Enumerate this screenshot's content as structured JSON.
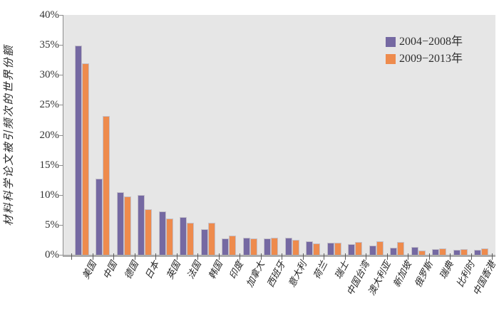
{
  "chart_data": {
    "type": "bar",
    "title": "",
    "xlabel": "",
    "ylabel": "材料科学论文被引频次的世界份额",
    "ylim": [
      0,
      40
    ],
    "y_tick_step": 5,
    "y_tick_labels": [
      "0%",
      "5%",
      "10%",
      "15%",
      "20%",
      "25%",
      "30%",
      "35%",
      "40%"
    ],
    "grid": false,
    "plot_background": "#E6E6E6",
    "legend_position": "top-right-inside",
    "categories": [
      "美国",
      "中国",
      "德国",
      "日本",
      "英国",
      "法国",
      "韩国",
      "印度",
      "加拿大",
      "西班牙",
      "意大利",
      "荷兰",
      "瑞士",
      "中国台湾",
      "澳大利亚",
      "新加坡",
      "俄罗斯",
      "瑞典",
      "比利时",
      "中国香港"
    ],
    "series": [
      {
        "name": "2004−2008年",
        "color": "#7569A2",
        "values": [
          34.9,
          12.7,
          10.4,
          10.0,
          7.2,
          6.3,
          4.3,
          2.7,
          2.9,
          2.7,
          2.8,
          2.3,
          2.0,
          1.8,
          1.6,
          1.2,
          1.3,
          1.0,
          0.8,
          0.8
        ]
      },
      {
        "name": "2009−2013年",
        "color": "#EE8B4D",
        "values": [
          31.9,
          23.1,
          9.7,
          7.6,
          6.1,
          5.4,
          5.3,
          3.2,
          2.7,
          2.9,
          2.5,
          1.9,
          2.0,
          2.1,
          2.3,
          2.2,
          0.7,
          1.1,
          1.0,
          1.1
        ]
      }
    ]
  }
}
